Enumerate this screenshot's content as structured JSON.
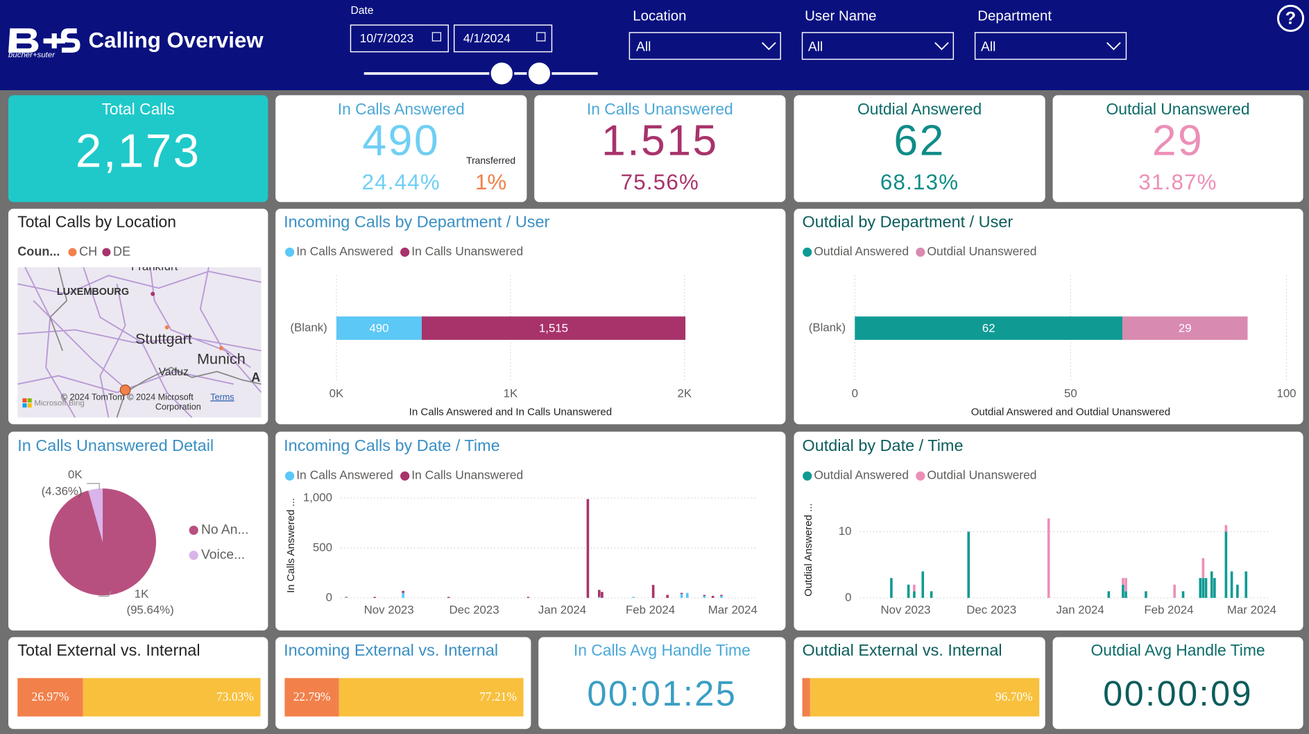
{
  "header": {
    "brand": "bucher+suter",
    "title": "Calling Overview",
    "help": "?"
  },
  "filters": {
    "date": {
      "label": "Date",
      "from": "10/7/2023",
      "to": "4/1/2024"
    },
    "location": {
      "label": "Location",
      "value": "All"
    },
    "user_name": {
      "label": "User Name",
      "value": "All"
    },
    "department": {
      "label": "Department",
      "value": "All"
    }
  },
  "kpis": [
    {
      "title": "Total Calls",
      "value": "2,173"
    },
    {
      "title": "In Calls Answered",
      "value": "490",
      "percent": "24.44%",
      "transferred_label": "Transferred",
      "transferred": "1%"
    },
    {
      "title": "In Calls Unanswered",
      "value": "1.515",
      "percent": "75.56%"
    },
    {
      "title": "Outdial Answered",
      "value": "62",
      "percent": "68.13%"
    },
    {
      "title": "Outdial Unanswered",
      "value": "29",
      "percent": "31.87%"
    }
  ],
  "map": {
    "title": "Total Calls by Location",
    "legend_title": "Coun...",
    "legend": [
      {
        "name": "CH",
        "color": "#f2804a"
      },
      {
        "name": "DE",
        "color": "#a8336b"
      }
    ],
    "places": [
      "Frankfurt",
      "LUXEMBOURG",
      "Stuttgart",
      "Munich",
      "Vaduz",
      "A"
    ],
    "attribution": [
      "© 2024 TomTom © 2024 Microsoft",
      "Corporation"
    ],
    "terms": "Terms",
    "provider": "Microsoft Bing"
  },
  "handle_times": [
    {
      "title": "In Calls Avg Handle Time",
      "value": "00:01:25"
    },
    {
      "title": "Outdial Avg Handle Time",
      "value": "00:00:09"
    }
  ],
  "chart_data": [
    {
      "type": "bar",
      "orientation": "horizontal",
      "stacked": true,
      "title": "Incoming Calls by Department / User",
      "categories": [
        "(Blank)"
      ],
      "series": [
        {
          "name": "In Calls Answered",
          "color": "#5bc8f5",
          "values": [
            490
          ],
          "value_labels": [
            "490"
          ]
        },
        {
          "name": "In Calls Unanswered",
          "color": "#a8336b",
          "values": [
            1515
          ],
          "value_labels": [
            "1,515"
          ]
        }
      ],
      "xlim": [
        0,
        2000
      ],
      "xticks": [
        {
          "value": 0,
          "label": "0K"
        },
        {
          "value": 1000,
          "label": "1K"
        },
        {
          "value": 2000,
          "label": "2K"
        }
      ],
      "xlabel": "In Calls Answered and In Calls Unanswered",
      "grid": true,
      "legend": "top-left"
    },
    {
      "type": "bar",
      "orientation": "horizontal",
      "stacked": true,
      "title": "Outdial by Department / User",
      "categories": [
        "(Blank)"
      ],
      "series": [
        {
          "name": "Outdial Answered",
          "color": "#0f9a94",
          "values": [
            62
          ]
        },
        {
          "name": "Outdial Unanswered",
          "color": "#d98ab0",
          "values": [
            29
          ]
        }
      ],
      "xlim": [
        0,
        100
      ],
      "xticks": [
        0,
        50,
        100
      ],
      "xlabel": "Outdial Answered and Outdial Unanswered",
      "grid": true,
      "legend": "top-left"
    },
    {
      "type": "pie",
      "title": "In Calls Unanswered Detail",
      "categories": [
        "No An...",
        "Voice..."
      ],
      "values": [
        1449,
        66
      ],
      "value_labels": [
        "1K",
        "0K"
      ],
      "percent_labels": [
        "(95.64%)",
        "(4.36%)"
      ],
      "colors": [
        "#b8507f",
        "#d8b4ea"
      ],
      "legend": "right"
    },
    {
      "type": "timebar",
      "stacked": true,
      "title": "Incoming Calls by Date / Time",
      "x": [
        "2023-10-17",
        "2023-10-27",
        "2023-11-06",
        "2023-11-22",
        "2023-12-20",
        "2024-01-10",
        "2024-01-14",
        "2024-01-15",
        "2024-01-26",
        "2024-02-02",
        "2024-02-07",
        "2024-02-12",
        "2024-02-14",
        "2024-02-20",
        "2024-02-23",
        "2024-02-26"
      ],
      "series": [
        {
          "name": "In Calls Answered",
          "color": "#5bc8f5",
          "values": [
            5,
            0,
            50,
            0,
            0,
            0,
            10,
            0,
            10,
            0,
            0,
            40,
            50,
            20,
            0,
            20
          ]
        },
        {
          "name": "In Calls Unanswered",
          "color": "#a8336b",
          "values": [
            5,
            10,
            20,
            10,
            10,
            990,
            70,
            60,
            0,
            130,
            30,
            10,
            0,
            10,
            20,
            10
          ]
        }
      ],
      "xlim": [
        "2023-10-15",
        "2024-03-09"
      ],
      "xticks": [
        {
          "value": "2023-11-01",
          "label": "Nov 2023"
        },
        {
          "value": "2023-12-01",
          "label": "Dec 2023"
        },
        {
          "value": "2024-01-01",
          "label": "Jan 2024"
        },
        {
          "value": "2024-02-01",
          "label": "Feb 2024"
        },
        {
          "value": "2024-03-01",
          "label": "Mar 2024"
        }
      ],
      "ylim": [
        0,
        1050
      ],
      "yticks": [
        0,
        500,
        {
          "value": 1000,
          "label": "1,000"
        }
      ],
      "ylabel": "In Calls Answered ...",
      "grid": true,
      "legend": "top-left"
    },
    {
      "type": "timebar",
      "stacked": true,
      "title": "Outdial by Date / Time",
      "x": [
        "2023-10-27",
        "2023-11-02",
        "2023-11-04",
        "2023-11-07",
        "2023-11-10",
        "2023-11-23",
        "2023-12-21",
        "2024-01-11",
        "2024-01-16",
        "2024-01-17",
        "2024-01-24",
        "2024-02-03",
        "2024-02-06",
        "2024-02-12",
        "2024-02-13",
        "2024-02-14",
        "2024-02-16",
        "2024-02-17",
        "2024-02-21",
        "2024-02-23",
        "2024-02-25",
        "2024-02-28"
      ],
      "series": [
        {
          "name": "Outdial Answered",
          "color": "#0f9a94",
          "values": [
            3,
            2,
            1,
            4,
            1,
            10,
            0,
            1,
            2,
            1,
            1,
            0,
            1,
            3,
            3,
            3,
            4,
            3,
            10,
            4,
            2,
            4
          ]
        },
        {
          "name": "Outdial Unanswered",
          "color": "#ec8fb8",
          "values": [
            0,
            0,
            1,
            0,
            0,
            0,
            12,
            0,
            1,
            2,
            0,
            2,
            0,
            0,
            3,
            0,
            0,
            0,
            1,
            0,
            0,
            0
          ]
        }
      ],
      "xlim": [
        "2023-10-16",
        "2024-03-07"
      ],
      "xticks": [
        {
          "value": "2023-11-01",
          "label": "Nov 2023"
        },
        {
          "value": "2023-12-01",
          "label": "Dec 2023"
        },
        {
          "value": "2024-01-01",
          "label": "Jan 2024"
        },
        {
          "value": "2024-02-01",
          "label": "Feb 2024"
        },
        {
          "value": "2024-03-01",
          "label": "Mar 2024"
        }
      ],
      "ylim": [
        0,
        14.5
      ],
      "yticks": [
        0,
        10
      ],
      "ylabel": "Outdial Answered ...",
      "grid": true,
      "legend": "top-left"
    },
    {
      "type": "bar",
      "orientation": "horizontal",
      "stacked": true,
      "title": "Total External vs. Internal",
      "series": [
        {
          "color": "#f2804a",
          "values": [
            26.97
          ],
          "value_labels": [
            "26.97%"
          ]
        },
        {
          "color": "#f8c03d",
          "values": [
            73.03
          ],
          "value_labels": [
            "73.03%"
          ]
        }
      ],
      "xlim": [
        0,
        100
      ]
    },
    {
      "type": "bar",
      "orientation": "horizontal",
      "stacked": true,
      "title": "Incoming External vs. Internal",
      "series": [
        {
          "color": "#f2804a",
          "values": [
            22.79
          ],
          "value_labels": [
            "22.79%"
          ]
        },
        {
          "color": "#f8c03d",
          "values": [
            77.21
          ],
          "value_labels": [
            "77.21%"
          ]
        }
      ],
      "xlim": [
        0,
        100
      ]
    },
    {
      "type": "bar",
      "orientation": "horizontal",
      "stacked": true,
      "title": "Outdial External vs. Internal",
      "series": [
        {
          "color": "#f2804a",
          "values": [
            3.3
          ]
        },
        {
          "color": "#f8c03d",
          "values": [
            96.7
          ],
          "value_labels": [
            "96.70%"
          ]
        }
      ],
      "xlim": [
        0,
        100
      ]
    }
  ]
}
